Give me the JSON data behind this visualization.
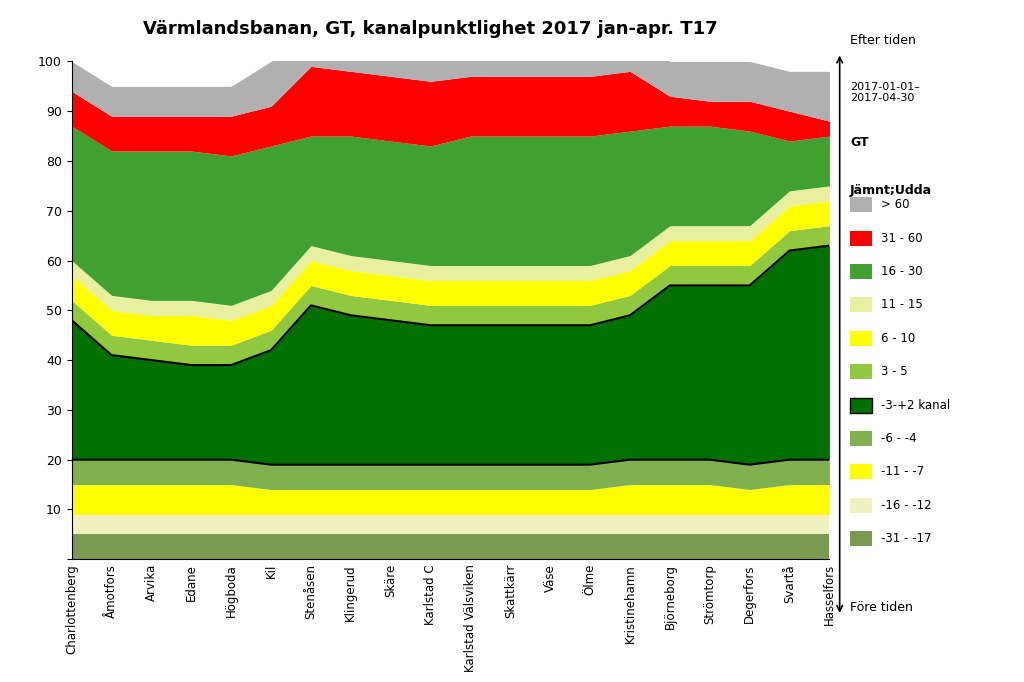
{
  "title": "Värmlandsbanan, GT, kanalpunktlighet 2017 jan-apr. T17",
  "stations": [
    "Charlottenberg",
    "Åmotfors",
    "Arvika",
    "Edane",
    "Högboda",
    "Kil",
    "Stenåsen",
    "Klingerud",
    "Skäre",
    "Karlstad C",
    "Karlstad Välsviken",
    "Skattkärr",
    "Väse",
    "Ölme",
    "Kristinehamn",
    "Björneborg",
    "Strömtorp",
    "Degerfors",
    "Svartå",
    "Hasselfors"
  ],
  "layer_names": [
    "-31 - -17",
    "-16 - -12",
    "-11 - -7",
    "-6 - -4",
    "-3-+2 kanal",
    "3 - 5",
    "6 - 10",
    "11 - 15",
    "16 - 30",
    "31 - 60",
    "> 60"
  ],
  "layer_colors": [
    "#7a9a50",
    "#f0f0c0",
    "#ffff00",
    "#80b050",
    "#007000",
    "#80c040",
    "#ffff00",
    "#e8f0b0",
    "#40a030",
    "#ff0000",
    "#b0b0b0"
  ],
  "date_label": "2017-01-01–\n2017-04-30",
  "train_type": "GT",
  "after_label": "Efter tiden",
  "before_label": "Före tiden",
  "legend_title": "Jämnt;Udda",
  "ylim": [
    0,
    100
  ],
  "m3117": [
    5,
    5,
    5,
    5,
    5,
    5,
    5,
    5,
    5,
    5,
    5,
    5,
    5,
    5,
    5,
    5,
    5,
    5,
    5,
    5
  ],
  "m1612": [
    4,
    4,
    4,
    4,
    4,
    4,
    4,
    4,
    4,
    4,
    4,
    4,
    4,
    4,
    4,
    4,
    4,
    4,
    4,
    4
  ],
  "m117": [
    6,
    6,
    6,
    6,
    6,
    5,
    5,
    5,
    5,
    5,
    5,
    5,
    5,
    5,
    6,
    6,
    6,
    5,
    6,
    6
  ],
  "m64": [
    5,
    5,
    5,
    5,
    5,
    5,
    5,
    5,
    5,
    5,
    5,
    5,
    5,
    5,
    5,
    5,
    5,
    5,
    5,
    5
  ],
  "kanal": [
    28,
    21,
    20,
    19,
    19,
    23,
    32,
    30,
    29,
    28,
    28,
    28,
    28,
    28,
    29,
    35,
    35,
    36,
    42,
    43
  ],
  "r35": [
    4,
    4,
    4,
    4,
    4,
    4,
    4,
    4,
    4,
    4,
    4,
    4,
    4,
    4,
    4,
    4,
    4,
    4,
    4,
    4
  ],
  "r610": [
    5,
    5,
    5,
    6,
    5,
    5,
    5,
    5,
    5,
    5,
    5,
    5,
    5,
    5,
    5,
    5,
    5,
    5,
    5,
    5
  ],
  "r1115": [
    3,
    3,
    3,
    3,
    3,
    3,
    3,
    3,
    3,
    3,
    3,
    3,
    3,
    3,
    3,
    3,
    3,
    3,
    3,
    3
  ],
  "r1630": [
    27,
    29,
    30,
    30,
    30,
    29,
    22,
    24,
    24,
    24,
    26,
    26,
    26,
    26,
    25,
    20,
    20,
    19,
    10,
    10
  ],
  "r3160": [
    7,
    7,
    7,
    7,
    8,
    8,
    14,
    13,
    13,
    13,
    12,
    12,
    12,
    12,
    12,
    6,
    5,
    6,
    6,
    3
  ],
  "gt60": [
    6,
    6,
    6,
    6,
    6,
    9,
    6,
    6,
    7,
    8,
    7,
    7,
    7,
    7,
    7,
    7,
    8,
    8,
    8,
    10
  ]
}
